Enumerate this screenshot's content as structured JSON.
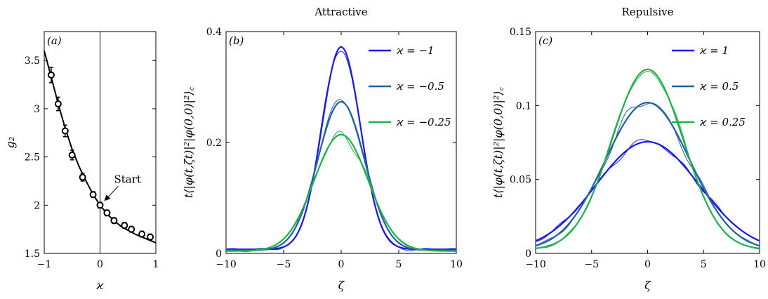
{
  "colors": {
    "blue": "#1a1ae6",
    "midblue": "#1f5fa8",
    "green": "#22b04a",
    "black": "#000000"
  },
  "chart_data": [
    {
      "id": "a",
      "type": "scatter",
      "panel_label": "(a)",
      "title": "",
      "xlabel": "ϰ",
      "ylabel": "g₂",
      "xlim": [
        -1,
        1
      ],
      "ylim": [
        1.5,
        3.8
      ],
      "xticks": [
        -1,
        0,
        1
      ],
      "xtick_labels": [
        "−1",
        "0",
        "1"
      ],
      "yticks": [
        1.5,
        2,
        2.5,
        3,
        3.5
      ],
      "ytick_labels": [
        "1.5",
        "2",
        "2.5",
        "3",
        "3.5"
      ],
      "vline_x": 0,
      "annotation": {
        "text": "Start",
        "x": 0,
        "y": 2.0
      },
      "points": [
        {
          "x": -0.875,
          "y": 3.35,
          "err": 0.08
        },
        {
          "x": -0.75,
          "y": 3.05,
          "err": 0.07
        },
        {
          "x": -0.625,
          "y": 2.77,
          "err": 0.06
        },
        {
          "x": -0.5,
          "y": 2.52,
          "err": 0.05
        },
        {
          "x": -0.3125,
          "y": 2.29,
          "err": 0.04
        },
        {
          "x": -0.125,
          "y": 2.11,
          "err": 0.03
        },
        {
          "x": 0.0,
          "y": 2.0,
          "err": 0.03
        },
        {
          "x": 0.125,
          "y": 1.92,
          "err": 0.03
        },
        {
          "x": 0.25,
          "y": 1.84,
          "err": 0.03
        },
        {
          "x": 0.4375,
          "y": 1.79,
          "err": 0.03
        },
        {
          "x": 0.5625,
          "y": 1.75,
          "err": 0.03
        },
        {
          "x": 0.75,
          "y": 1.7,
          "err": 0.03
        },
        {
          "x": 0.9,
          "y": 1.67,
          "err": 0.03
        }
      ],
      "curve": {
        "x": [
          -1,
          -0.875,
          -0.75,
          -0.625,
          -0.5,
          -0.375,
          -0.25,
          -0.125,
          0,
          0.125,
          0.25,
          0.375,
          0.5,
          0.625,
          0.75,
          0.875,
          1
        ],
        "y": [
          3.6,
          3.33,
          3.05,
          2.8,
          2.58,
          2.4,
          2.25,
          2.11,
          2.0,
          1.91,
          1.84,
          1.78,
          1.74,
          1.7,
          1.67,
          1.64,
          1.61
        ]
      }
    },
    {
      "id": "b",
      "type": "line",
      "panel_label": "(b)",
      "title": "Attractive",
      "xlabel": "ζ",
      "ylabel": "t⟨|φ(t,ζt)|²|φ(0,0)|²⟩꜀",
      "xlim": [
        -10,
        10
      ],
      "ylim": [
        0,
        0.4
      ],
      "xticks": [
        -10,
        -5,
        0,
        5,
        10
      ],
      "xtick_labels": [
        "−10",
        "−5",
        "0",
        "5",
        "10"
      ],
      "yticks": [
        0,
        0.2,
        0.4
      ],
      "ytick_labels": [
        "0",
        "0.2",
        "0.4"
      ],
      "legend_position": "top-right",
      "series": [
        {
          "name": "ϰ = −1",
          "color": "#1a1ae6",
          "amp": 0.365,
          "sigma": 1.68,
          "noise_seed": 1
        },
        {
          "name": "ϰ = −0.5",
          "color": "#1f5fa8",
          "amp": 0.268,
          "sigma": 2.05,
          "noise_seed": 2
        },
        {
          "name": "ϰ = −0.25",
          "color": "#22b04a",
          "amp": 0.21,
          "sigma": 2.35,
          "noise_seed": 3
        }
      ]
    },
    {
      "id": "c",
      "type": "line",
      "panel_label": "(c)",
      "title": "Repulsive",
      "xlabel": "ζ",
      "ylabel": "t⟨|φ(t,ζt)|²|φ(0,0)|²⟩꜀",
      "xlim": [
        -10,
        10
      ],
      "ylim": [
        0,
        0.15
      ],
      "xticks": [
        -10,
        -5,
        0,
        5,
        10
      ],
      "xtick_labels": [
        "−10",
        "−5",
        "0",
        "5",
        "10"
      ],
      "yticks": [
        0,
        0.05,
        0.1,
        0.15
      ],
      "ytick_labels": [
        "0",
        "0.05",
        "0.1",
        "0.15"
      ],
      "legend_position": "top-right",
      "series": [
        {
          "name": "ϰ = 1",
          "color": "#1a1ae6",
          "amp": 0.074,
          "sigma": 4.6,
          "noise_seed": 4
        },
        {
          "name": "ϰ = 0.5",
          "color": "#1f5fa8",
          "amp": 0.1,
          "sigma": 3.8,
          "noise_seed": 5
        },
        {
          "name": "ϰ = 0.25",
          "color": "#22b04a",
          "amp": 0.122,
          "sigma": 3.2,
          "noise_seed": 6
        }
      ]
    }
  ]
}
